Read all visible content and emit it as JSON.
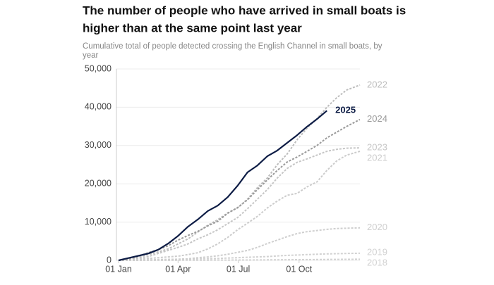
{
  "chart_data": {
    "type": "line",
    "title": [
      "The number of people who have arrived in small boats is",
      "higher than at the same point last year"
    ],
    "subtitle": [
      "Cumulative total of people detected crossing the English Channel in small boats, by",
      "year"
    ],
    "x": [
      0,
      15,
      30,
      45,
      60,
      75,
      90,
      105,
      120,
      135,
      150,
      165,
      180,
      195,
      210,
      225,
      240,
      255,
      270,
      285,
      300,
      315,
      330,
      345,
      365
    ],
    "xlim": [
      0,
      365
    ],
    "xticks": [
      {
        "value": 0,
        "label": "01 Jan"
      },
      {
        "value": 90,
        "label": "01 Apr"
      },
      {
        "value": 181,
        "label": "01 Jul"
      },
      {
        "value": 273,
        "label": "01 Oct"
      }
    ],
    "ylim": [
      0,
      50000
    ],
    "yticks": [
      0,
      {
        "value": 10000,
        "label": "10,000"
      },
      {
        "value": 20000,
        "label": "20,000"
      },
      {
        "value": 30000,
        "label": "30,000"
      },
      {
        "value": 40000,
        "label": "40,000"
      },
      {
        "value": 50000,
        "label": "50,000"
      }
    ],
    "grid": true,
    "series": [
      {
        "name": "2018",
        "color": "#d2d2d2",
        "dashed": true,
        "values": [
          0,
          5,
          10,
          15,
          20,
          25,
          30,
          40,
          50,
          60,
          70,
          80,
          90,
          100,
          110,
          120,
          140,
          160,
          180,
          200,
          220,
          240,
          260,
          280,
          300
        ]
      },
      {
        "name": "2019",
        "color": "#d2d2d2",
        "dashed": true,
        "values": [
          0,
          50,
          100,
          150,
          200,
          250,
          300,
          350,
          400,
          450,
          500,
          600,
          700,
          800,
          900,
          1000,
          1150,
          1300,
          1400,
          1500,
          1600,
          1700,
          1750,
          1800,
          1850
        ]
      },
      {
        "name": "2020",
        "color": "#cfcfcf",
        "dashed": true,
        "values": [
          0,
          0,
          0,
          100,
          200,
          200,
          300,
          400,
          700,
          900,
          1200,
          1600,
          2100,
          2600,
          3400,
          4400,
          5300,
          6200,
          7000,
          7500,
          7800,
          8100,
          8300,
          8400,
          8500
        ]
      },
      {
        "name": "2021",
        "color": "#cccccc",
        "dashed": true,
        "values": [
          0,
          100,
          300,
          500,
          700,
          900,
          1100,
          1500,
          2000,
          3000,
          4300,
          6000,
          8000,
          9700,
          11500,
          13700,
          15500,
          17000,
          17500,
          19200,
          20500,
          23500,
          26000,
          27500,
          28500
        ]
      },
      {
        "name": "2023",
        "color": "#c6c6c6",
        "dashed": true,
        "values": [
          0,
          300,
          600,
          1000,
          1800,
          2600,
          3400,
          4300,
          5600,
          6700,
          8000,
          9600,
          11200,
          13500,
          16000,
          18500,
          21500,
          24000,
          25600,
          26500,
          27500,
          28500,
          29000,
          29300,
          29400
        ]
      },
      {
        "name": "2022",
        "color": "#bdbdbd",
        "dashed": true,
        "values": [
          0,
          300,
          900,
          1500,
          2200,
          3000,
          4300,
          5600,
          7400,
          9200,
          10600,
          12400,
          13700,
          16000,
          19000,
          21500,
          25000,
          27800,
          31500,
          34500,
          37000,
          40000,
          42500,
          44500,
          45800
        ]
      },
      {
        "name": "2024",
        "color": "#9a9a9a",
        "dashed": true,
        "values": [
          0,
          400,
          1100,
          2000,
          2800,
          3800,
          5300,
          6500,
          7600,
          9000,
          10200,
          12300,
          13800,
          15800,
          18500,
          21000,
          23500,
          25700,
          27000,
          28500,
          30000,
          32000,
          33500,
          35000,
          36800
        ]
      },
      {
        "name": "2025",
        "color": "#0d1c45",
        "dashed": false,
        "values": [
          0,
          600,
          1200,
          1800,
          2800,
          4400,
          6400,
          8800,
          10700,
          12900,
          14300,
          16500,
          19500,
          23000,
          24800,
          27200,
          28700,
          30700,
          32700,
          34900,
          36900,
          39100,
          null,
          null,
          null
        ]
      }
    ]
  }
}
